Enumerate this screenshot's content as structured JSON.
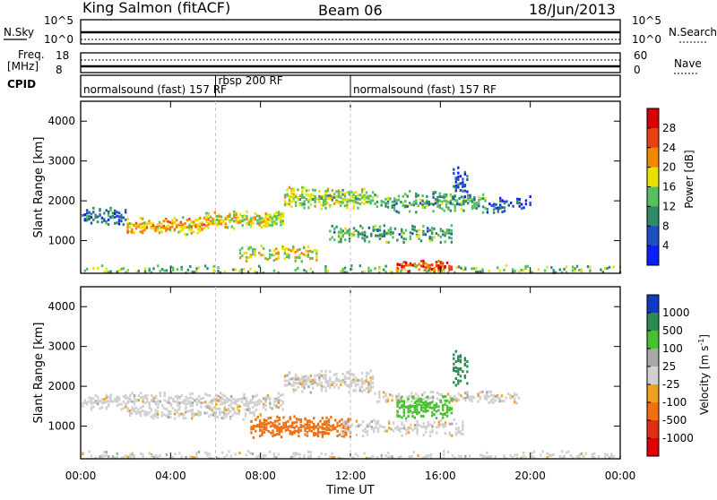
{
  "header": {
    "station": "King Salmon (fitACF)",
    "beam": "Beam 06",
    "date": "18/Jun/2013"
  },
  "strip": {
    "nsky_label": "N.Sky",
    "nsky_ticks": [
      "10^5",
      "10^0"
    ],
    "nsearch_label": "N.Search",
    "nsearch_ticks": [
      "10^5",
      "10^0"
    ],
    "freq_label_1": "Freq.",
    "freq_label_2": "[MHz]",
    "freq_ticks": [
      "18",
      "8"
    ],
    "nave_label": "Nave",
    "nave_ticks": [
      "60",
      "0"
    ],
    "cpid_label": "CPID",
    "cpid_segments": [
      {
        "name": "normalsound (fast) 157 RF",
        "start_hr": 0,
        "end_hr": 6
      },
      {
        "name": "rbsp 200 RF",
        "start_hr": 6,
        "end_hr": 12
      },
      {
        "name": "normalsound (fast) 157 RF",
        "start_hr": 12,
        "end_hr": 24
      }
    ]
  },
  "axes": {
    "ylabel": "Slant Range [km]",
    "xlabel": "Time UT",
    "x_ticks": [
      "00:00",
      "04:00",
      "08:00",
      "12:00",
      "16:00",
      "20:00",
      "00:00"
    ],
    "y_ticks": [
      "1000",
      "2000",
      "3000",
      "4000"
    ]
  },
  "power_colorbar": {
    "label": "Power [dB]",
    "ticks": [
      "4",
      "8",
      "12",
      "16",
      "20",
      "24",
      "28"
    ],
    "colors": [
      "#0a1fff",
      "#1f4fbf",
      "#2f8a66",
      "#55c060",
      "#e8e000",
      "#f08800",
      "#e84010",
      "#d80000"
    ]
  },
  "velocity_colorbar": {
    "label": "Velocity [m s^-1]",
    "ticks": [
      "1000",
      "500",
      "100",
      "25",
      "-25",
      "-100",
      "-500",
      "-1000"
    ],
    "colors": [
      "#1438c0",
      "#2a8a50",
      "#48c030",
      "#a8a8a8",
      "#d0d0d0",
      "#f0a020",
      "#f07010",
      "#e03010",
      "#e00000"
    ]
  },
  "chart_data": [
    {
      "type": "heatmap",
      "title": "Power",
      "x_range_hr": [
        0,
        24
      ],
      "y_range_km": [
        180,
        4500
      ],
      "value_label": "Power [dB]",
      "features": [
        {
          "start_hr": 0.0,
          "end_hr": 24.0,
          "center_km": 250,
          "width_km": 90,
          "density": 0.35,
          "value": 14
        },
        {
          "start_hr": 0.0,
          "end_hr": 2.0,
          "center_km": 1650,
          "width_km": 170,
          "density": 0.7,
          "value": 8
        },
        {
          "start_hr": 2.0,
          "end_hr": 5.5,
          "center_km": 1400,
          "width_km": 220,
          "density": 0.85,
          "value": 20
        },
        {
          "start_hr": 5.5,
          "end_hr": 9.0,
          "center_km": 1550,
          "width_km": 220,
          "density": 0.85,
          "value": 18
        },
        {
          "start_hr": 9.0,
          "end_hr": 13.0,
          "center_km": 2100,
          "width_km": 260,
          "density": 0.8,
          "value": 16
        },
        {
          "start_hr": 13.0,
          "end_hr": 18.0,
          "center_km": 2000,
          "width_km": 240,
          "density": 0.7,
          "value": 12
        },
        {
          "start_hr": 18.0,
          "end_hr": 20.0,
          "center_km": 1950,
          "width_km": 200,
          "density": 0.4,
          "value": 6
        },
        {
          "start_hr": 7.0,
          "end_hr": 10.5,
          "center_km": 700,
          "width_km": 200,
          "density": 0.5,
          "value": 18
        },
        {
          "start_hr": 11.0,
          "end_hr": 16.5,
          "center_km": 1200,
          "width_km": 200,
          "density": 0.6,
          "value": 12
        },
        {
          "start_hr": 14.0,
          "end_hr": 16.5,
          "center_km": 400,
          "width_km": 150,
          "density": 0.75,
          "value": 26
        },
        {
          "start_hr": 16.5,
          "end_hr": 17.2,
          "center_km": 2500,
          "width_km": 450,
          "density": 0.5,
          "value": 6
        }
      ]
    },
    {
      "type": "heatmap",
      "title": "Velocity",
      "x_range_hr": [
        0,
        24
      ],
      "y_range_km": [
        180,
        4500
      ],
      "value_label": "Velocity [m s^-1]",
      "features": [
        {
          "start_hr": 0.0,
          "end_hr": 24.0,
          "center_km": 250,
          "width_km": 90,
          "density": 0.35,
          "value": 0
        },
        {
          "start_hr": 0.0,
          "end_hr": 9.0,
          "center_km": 1650,
          "width_km": 200,
          "density": 0.75,
          "value": 0
        },
        {
          "start_hr": 9.0,
          "end_hr": 13.0,
          "center_km": 2150,
          "width_km": 250,
          "density": 0.8,
          "value": 0
        },
        {
          "start_hr": 13.0,
          "end_hr": 19.5,
          "center_km": 1750,
          "width_km": 150,
          "density": 0.55,
          "value": 0
        },
        {
          "start_hr": 2.0,
          "end_hr": 8.0,
          "center_km": 1350,
          "width_km": 150,
          "density": 0.6,
          "value": 0
        },
        {
          "start_hr": 7.5,
          "end_hr": 12.0,
          "center_km": 1000,
          "width_km": 300,
          "density": 0.8,
          "value": -150
        },
        {
          "start_hr": 14.0,
          "end_hr": 16.5,
          "center_km": 1500,
          "width_km": 250,
          "density": 0.75,
          "value": 150
        },
        {
          "start_hr": 16.5,
          "end_hr": 17.2,
          "center_km": 2500,
          "width_km": 450,
          "density": 0.5,
          "value": 800
        },
        {
          "start_hr": 11.5,
          "end_hr": 17.0,
          "center_km": 1000,
          "width_km": 200,
          "density": 0.5,
          "value": 0
        }
      ]
    }
  ]
}
